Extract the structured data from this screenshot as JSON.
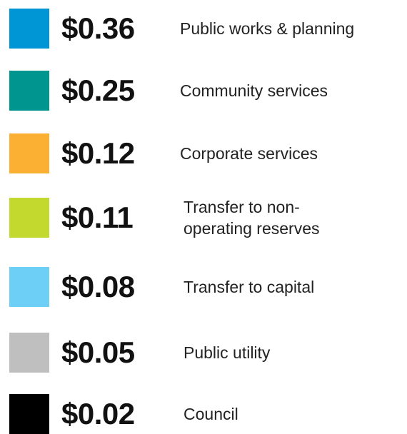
{
  "items": [
    {
      "color": "#0096d6",
      "amount": "$0.36",
      "label_lines": [
        "Public works & planning"
      ]
    },
    {
      "color": "#00968f",
      "amount": "$0.25",
      "label_lines": [
        "Community services"
      ]
    },
    {
      "color": "#fbb034",
      "amount": "$0.12",
      "label_lines": [
        "Corporate services"
      ]
    },
    {
      "color": "#c4d92e",
      "amount": "$0.11",
      "label_lines": [
        "Transfer to non-",
        "operating reserves"
      ]
    },
    {
      "color": "#6dcff6",
      "amount": "$0.08",
      "label_lines": [
        "Transfer to capital"
      ]
    },
    {
      "color": "#bfbfbf",
      "amount": "$0.05",
      "label_lines": [
        "Public utility"
      ]
    },
    {
      "color": "#000000",
      "amount": "$0.02",
      "label_lines": [
        "Council"
      ]
    }
  ]
}
